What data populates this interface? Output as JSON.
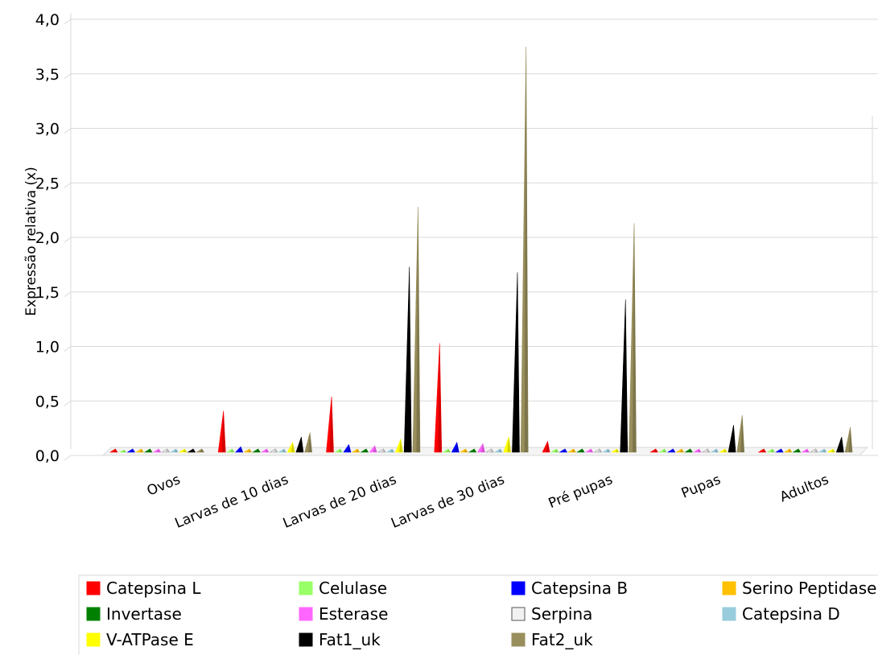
{
  "chart_data": {
    "type": "bar",
    "style": "3d-cone",
    "ylabel": "Expressão relativa (x)",
    "xlabel": "",
    "ylim": [
      0,
      4
    ],
    "y_ticks": [
      "0,0",
      "0,5",
      "1,0",
      "1,5",
      "2,0",
      "2,5",
      "3,0",
      "3,5",
      "4,0"
    ],
    "grid": true,
    "legend_position": "bottom",
    "categories": [
      "Ovos",
      "Larvas de 10 dias",
      "Larvas de 20 dias",
      "Larvas de 30 dias",
      "Pré pupas",
      "Pupas",
      "Adultos"
    ],
    "series": [
      {
        "name": "Catepsina L",
        "color": "#ff0000",
        "values": [
          0.03,
          0.38,
          0.51,
          1.0,
          0.1,
          0.03,
          0.03
        ]
      },
      {
        "name": "Celulase",
        "color": "#99ff66",
        "values": [
          0.02,
          0.03,
          0.03,
          0.03,
          0.03,
          0.03,
          0.03
        ]
      },
      {
        "name": "Catepsina B",
        "color": "#0000ff",
        "values": [
          0.03,
          0.05,
          0.07,
          0.09,
          0.03,
          0.03,
          0.03
        ]
      },
      {
        "name": "Serino Peptidase",
        "color": "#ffc000",
        "values": [
          0.03,
          0.03,
          0.03,
          0.03,
          0.03,
          0.03,
          0.03
        ]
      },
      {
        "name": "Invertase",
        "color": "#008000",
        "values": [
          0.03,
          0.03,
          0.03,
          0.03,
          0.03,
          0.03,
          0.03
        ]
      },
      {
        "name": "Esterase",
        "color": "#ff66ff",
        "values": [
          0.03,
          0.03,
          0.06,
          0.08,
          0.03,
          0.03,
          0.03
        ]
      },
      {
        "name": "Serpina",
        "color": "#f2f2f2",
        "values": [
          0.03,
          0.03,
          0.03,
          0.03,
          0.03,
          0.03,
          0.03
        ]
      },
      {
        "name": "Catepsina D",
        "color": "#99ccdd",
        "values": [
          0.03,
          0.03,
          0.03,
          0.03,
          0.03,
          0.03,
          0.03
        ]
      },
      {
        "name": "V-ATPase E",
        "color": "#ffff00",
        "values": [
          0.03,
          0.09,
          0.12,
          0.14,
          0.03,
          0.03,
          0.03
        ]
      },
      {
        "name": "Fat1_uk",
        "color": "#000000",
        "values": [
          0.03,
          0.14,
          1.7,
          1.65,
          1.4,
          0.25,
          0.14
        ]
      },
      {
        "name": "Fat2_uk",
        "color": "#998f5c",
        "values": [
          0.03,
          0.18,
          2.25,
          3.72,
          2.1,
          0.34,
          0.23
        ]
      }
    ]
  }
}
